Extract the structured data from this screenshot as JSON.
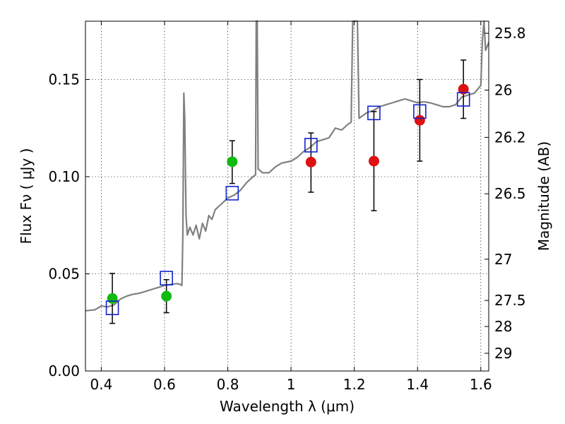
{
  "chart_data": {
    "type": "scatter",
    "xlabel": "Wavelength  λ (μm)",
    "ylabel": "Flux  Fν  ( μJy )",
    "ylabel_right": "Magnitude (AB)",
    "xlim": [
      0.35,
      1.625
    ],
    "ylim": [
      0.0,
      0.18
    ],
    "grid": true,
    "x_ticks": [
      {
        "value": 0.4,
        "label": "0.4"
      },
      {
        "value": 0.6,
        "label": "0.6"
      },
      {
        "value": 0.8,
        "label": "0.8"
      },
      {
        "value": 1.0,
        "label": "1"
      },
      {
        "value": 1.2,
        "label": "1.2"
      },
      {
        "value": 1.4,
        "label": "1.4"
      },
      {
        "value": 1.6,
        "label": "1.6"
      }
    ],
    "y_ticks": [
      {
        "value": 0.0,
        "label": "0.00"
      },
      {
        "value": 0.05,
        "label": "0.05"
      },
      {
        "value": 0.1,
        "label": "0.10"
      },
      {
        "value": 0.15,
        "label": "0.15"
      }
    ],
    "y_right_ticks": [
      {
        "value": 25.8,
        "label": "25.8"
      },
      {
        "value": 26.0,
        "label": "26"
      },
      {
        "value": 26.2,
        "label": "26.2"
      },
      {
        "value": 26.5,
        "label": "26.5"
      },
      {
        "value": 27.0,
        "label": "27"
      },
      {
        "value": 27.5,
        "label": "27.5"
      },
      {
        "value": 28.0,
        "label": "28"
      },
      {
        "value": 29.0,
        "label": "29"
      }
    ],
    "series": [
      {
        "kind": "points",
        "marker": "circle",
        "color": "#dd1111",
        "errorbars": true,
        "points": [
          {
            "x": 1.063,
            "y": 0.1075,
            "ylow": 0.092,
            "yhigh": 0.1225
          },
          {
            "x": 1.262,
            "y": 0.108,
            "ylow": 0.0825,
            "yhigh": 0.1335
          },
          {
            "x": 1.407,
            "y": 0.129,
            "ylow": 0.108,
            "yhigh": 0.15
          },
          {
            "x": 1.545,
            "y": 0.145,
            "ylow": 0.13,
            "yhigh": 0.16
          }
        ]
      },
      {
        "kind": "points",
        "marker": "circle",
        "color": "#11bb11",
        "errorbars": true,
        "points": [
          {
            "x": 0.435,
            "y": 0.0373,
            "ylow": 0.0245,
            "yhigh": 0.0502
          },
          {
            "x": 0.606,
            "y": 0.0385,
            "ylow": 0.03,
            "yhigh": 0.047
          },
          {
            "x": 0.814,
            "y": 0.1077,
            "ylow": 0.0965,
            "yhigh": 0.1185
          }
        ]
      },
      {
        "kind": "points",
        "marker": "open-square",
        "color": "#1122cc",
        "errorbars": false,
        "points": [
          {
            "x": 0.435,
            "y": 0.0325
          },
          {
            "x": 0.606,
            "y": 0.0478
          },
          {
            "x": 0.814,
            "y": 0.0915
          },
          {
            "x": 1.063,
            "y": 0.1162
          },
          {
            "x": 1.262,
            "y": 0.1328
          },
          {
            "x": 1.407,
            "y": 0.1335
          },
          {
            "x": 1.545,
            "y": 0.1398
          }
        ]
      },
      {
        "kind": "line",
        "color": "#808080",
        "points": [
          [
            0.35,
            0.031
          ],
          [
            0.38,
            0.0315
          ],
          [
            0.4,
            0.0335
          ],
          [
            0.42,
            0.033
          ],
          [
            0.44,
            0.034
          ],
          [
            0.46,
            0.037
          ],
          [
            0.48,
            0.0385
          ],
          [
            0.5,
            0.0395
          ],
          [
            0.52,
            0.04
          ],
          [
            0.54,
            0.041
          ],
          [
            0.56,
            0.042
          ],
          [
            0.58,
            0.043
          ],
          [
            0.6,
            0.044
          ],
          [
            0.62,
            0.0445
          ],
          [
            0.64,
            0.045
          ],
          [
            0.65,
            0.0445
          ],
          [
            0.655,
            0.044
          ],
          [
            0.658,
            0.07
          ],
          [
            0.661,
            0.143
          ],
          [
            0.664,
            0.13
          ],
          [
            0.668,
            0.08
          ],
          [
            0.672,
            0.07
          ],
          [
            0.68,
            0.074
          ],
          [
            0.69,
            0.07
          ],
          [
            0.7,
            0.075
          ],
          [
            0.71,
            0.068
          ],
          [
            0.72,
            0.076
          ],
          [
            0.73,
            0.072
          ],
          [
            0.74,
            0.08
          ],
          [
            0.75,
            0.078
          ],
          [
            0.76,
            0.083
          ],
          [
            0.78,
            0.086
          ],
          [
            0.8,
            0.089
          ],
          [
            0.82,
            0.0905
          ],
          [
            0.84,
            0.093
          ],
          [
            0.86,
            0.097
          ],
          [
            0.88,
            0.1
          ],
          [
            0.888,
            0.101
          ],
          [
            0.89,
            0.18
          ],
          [
            0.893,
            0.18
          ],
          [
            0.896,
            0.104
          ],
          [
            0.91,
            0.102
          ],
          [
            0.93,
            0.102
          ],
          [
            0.95,
            0.105
          ],
          [
            0.97,
            0.107
          ],
          [
            1.0,
            0.108
          ],
          [
            1.02,
            0.11
          ],
          [
            1.04,
            0.113
          ],
          [
            1.06,
            0.115
          ],
          [
            1.08,
            0.118
          ],
          [
            1.1,
            0.119
          ],
          [
            1.12,
            0.12
          ],
          [
            1.14,
            0.125
          ],
          [
            1.16,
            0.124
          ],
          [
            1.18,
            0.127
          ],
          [
            1.19,
            0.128
          ],
          [
            1.195,
            0.18
          ],
          [
            1.21,
            0.18
          ],
          [
            1.215,
            0.13
          ],
          [
            1.24,
            0.133
          ],
          [
            1.26,
            0.134
          ],
          [
            1.28,
            0.136
          ],
          [
            1.3,
            0.137
          ],
          [
            1.32,
            0.138
          ],
          [
            1.34,
            0.139
          ],
          [
            1.36,
            0.14
          ],
          [
            1.38,
            0.139
          ],
          [
            1.4,
            0.138
          ],
          [
            1.42,
            0.1385
          ],
          [
            1.44,
            0.138
          ],
          [
            1.46,
            0.137
          ],
          [
            1.48,
            0.136
          ],
          [
            1.5,
            0.136
          ],
          [
            1.52,
            0.137
          ],
          [
            1.54,
            0.141
          ],
          [
            1.56,
            0.142
          ],
          [
            1.58,
            0.143
          ],
          [
            1.59,
            0.145
          ],
          [
            1.6,
            0.147
          ],
          [
            1.605,
            0.17
          ],
          [
            1.61,
            0.18
          ],
          [
            1.615,
            0.165
          ],
          [
            1.625,
            0.169
          ]
        ]
      }
    ]
  }
}
